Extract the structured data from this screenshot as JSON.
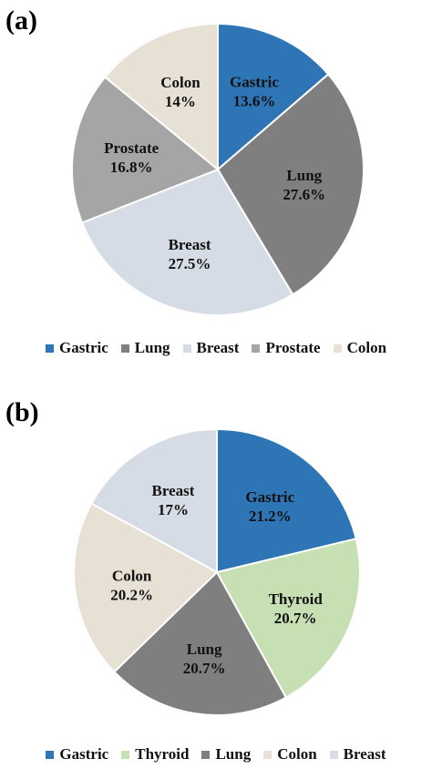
{
  "chart_data": [
    {
      "type": "pie",
      "panel_label": "(a)",
      "slices": [
        {
          "name": "Gastric",
          "value": 13.6,
          "label": "13.6%",
          "color": "#2e75b6"
        },
        {
          "name": "Lung",
          "value": 27.6,
          "label": "27.6%",
          "color": "#7f7f7f"
        },
        {
          "name": "Breast",
          "value": 27.5,
          "label": "27.5%",
          "color": "#d6dce5"
        },
        {
          "name": "Prostate",
          "value": 16.8,
          "label": "16.8%",
          "color": "#a5a5a5"
        },
        {
          "name": "Colon",
          "value": 14.0,
          "label": "14%",
          "color": "#e7e0d5"
        }
      ],
      "legend": [
        "Gastric",
        "Lung",
        "Breast",
        "Prostate",
        "Colon"
      ],
      "legend_position": "bottom"
    },
    {
      "type": "pie",
      "panel_label": "(b)",
      "slices": [
        {
          "name": "Gastric",
          "value": 21.2,
          "label": "21.2%",
          "color": "#2e75b6"
        },
        {
          "name": "Thyroid",
          "value": 20.7,
          "label": "20.7%",
          "color": "#c6e0b4"
        },
        {
          "name": "Lung",
          "value": 20.7,
          "label": "20.7%",
          "color": "#7f7f7f"
        },
        {
          "name": "Colon",
          "value": 20.2,
          "label": "20.2%",
          "color": "#e7e0d5"
        },
        {
          "name": "Breast",
          "value": 17.0,
          "label": "17%",
          "color": "#d6dce5"
        }
      ],
      "legend": [
        "Gastric",
        "Thyroid",
        "Lung",
        "Colon",
        "Breast"
      ],
      "legend_position": "bottom"
    }
  ]
}
